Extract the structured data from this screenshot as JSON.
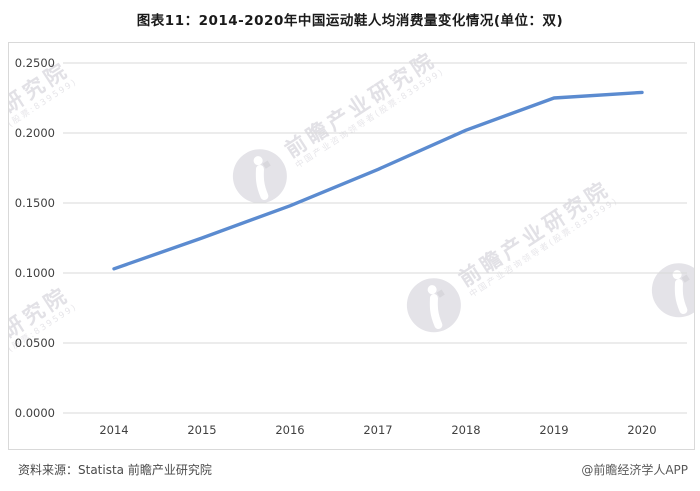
{
  "title": "图表11：2014-2020年中国运动鞋人均消费量变化情况(单位：双)",
  "watermark": {
    "text": "前瞻产业研究院",
    "subtext": "中国产业咨询领导者(股票:839599)"
  },
  "footer": {
    "source": "资料来源：Statista 前瞻产业研究院",
    "credit": "@前瞻经济学人APP"
  },
  "chart_data": {
    "type": "line",
    "title": "图表11：2014-2020年中国运动鞋人均消费量变化情况(单位：双)",
    "categories": [
      "2014",
      "2015",
      "2016",
      "2017",
      "2018",
      "2019",
      "2020"
    ],
    "values": [
      0.103,
      0.125,
      0.148,
      0.174,
      0.202,
      0.225,
      0.229
    ],
    "xlabel": "",
    "ylabel": "",
    "unit": "双",
    "ylim": [
      0,
      0.25
    ],
    "y_ticks": [
      "0.0000",
      "0.0500",
      "0.1000",
      "0.1500",
      "0.2000",
      "0.2500"
    ],
    "grid": "horizontal",
    "legend": "none",
    "line_color": "#5b8bd0",
    "grid_color": "#d9d9d9",
    "tick_label_color": "#404040"
  }
}
